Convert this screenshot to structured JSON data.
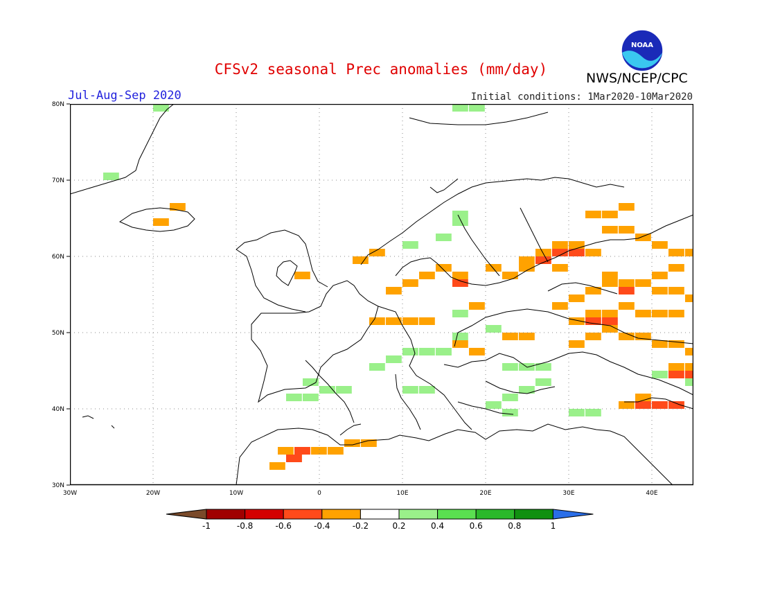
{
  "header": {
    "title": "CFSv2 seasonal Prec anomalies (mm/day)",
    "season": "Jul-Aug-Sep 2020",
    "initial_conditions": "Initial conditions: 1Mar2020-10Mar2020",
    "agency": "NWS/NCEP/CPC",
    "logo_text": "NOAA"
  },
  "axes": {
    "lat_labels": [
      "80N",
      "70N",
      "60N",
      "50N",
      "40N",
      "30N"
    ],
    "lon_labels": [
      "30W",
      "20W",
      "10W",
      "0",
      "10E",
      "20E",
      "30E",
      "40E"
    ],
    "lon_range": [
      -30,
      45
    ],
    "lat_range": [
      30,
      80
    ]
  },
  "colorbar": {
    "labels": [
      "-1",
      "-0.8",
      "-0.6",
      "-0.4",
      "-0.2",
      "0.2",
      "0.4",
      "0.6",
      "0.8",
      "1"
    ],
    "colors": [
      "#7a4a2a",
      "#a00000",
      "#d40000",
      "#ff4a1a",
      "#ffa200",
      "#ffffff",
      "#9af08a",
      "#5ae050",
      "#2ab82a",
      "#109010",
      "#2a6ee8"
    ]
  },
  "anomaly_cells": {
    "orange": [
      [
        -5,
        34
      ],
      [
        -3,
        34
      ],
      [
        -1,
        34
      ],
      [
        1,
        34
      ],
      [
        3,
        35
      ],
      [
        5,
        35
      ],
      [
        -6,
        32
      ],
      [
        -4,
        33
      ],
      [
        8,
        51
      ],
      [
        10,
        51
      ],
      [
        12,
        51
      ],
      [
        6,
        51
      ],
      [
        8,
        55
      ],
      [
        10,
        56
      ],
      [
        12,
        57
      ],
      [
        14,
        58
      ],
      [
        16,
        57
      ],
      [
        26,
        60
      ],
      [
        28,
        61
      ],
      [
        30,
        61
      ],
      [
        32,
        60
      ],
      [
        34,
        63
      ],
      [
        36,
        63
      ],
      [
        38,
        62
      ],
      [
        32,
        65
      ],
      [
        34,
        65
      ],
      [
        36,
        66
      ],
      [
        40,
        61
      ],
      [
        42,
        60
      ],
      [
        44,
        60
      ],
      [
        32,
        55
      ],
      [
        34,
        56
      ],
      [
        36,
        56
      ],
      [
        38,
        56
      ],
      [
        40,
        55
      ],
      [
        42,
        55
      ],
      [
        44,
        54
      ],
      [
        30,
        54
      ],
      [
        28,
        53
      ],
      [
        32,
        52
      ],
      [
        34,
        52
      ],
      [
        36,
        53
      ],
      [
        38,
        52
      ],
      [
        40,
        52
      ],
      [
        42,
        52
      ],
      [
        32,
        49
      ],
      [
        34,
        50
      ],
      [
        36,
        49
      ],
      [
        38,
        49
      ],
      [
        40,
        48
      ],
      [
        42,
        48
      ],
      [
        44,
        47
      ],
      [
        30,
        48
      ],
      [
        36,
        40
      ],
      [
        38,
        41
      ],
      [
        40,
        40
      ],
      [
        42,
        40
      ],
      [
        24,
        49
      ],
      [
        22,
        49
      ],
      [
        18,
        47
      ],
      [
        16,
        48
      ],
      [
        20,
        58
      ],
      [
        22,
        57
      ],
      [
        24,
        58
      ],
      [
        18,
        53
      ],
      [
        -3,
        57
      ],
      [
        -18,
        66
      ],
      [
        -20,
        64
      ],
      [
        44,
        45
      ],
      [
        42,
        45
      ],
      [
        6,
        60
      ],
      [
        4,
        59
      ],
      [
        34,
        57
      ],
      [
        40,
        57
      ],
      [
        28,
        58
      ],
      [
        24,
        59
      ],
      [
        30,
        51
      ],
      [
        42,
        58
      ]
    ],
    "red": [
      [
        32,
        51
      ],
      [
        34,
        51
      ],
      [
        36,
        55
      ],
      [
        38,
        40
      ],
      [
        40,
        40
      ],
      [
        42,
        40
      ],
      [
        44,
        44
      ],
      [
        42,
        44
      ],
      [
        -4,
        33
      ],
      [
        -3,
        34
      ],
      [
        16,
        56
      ],
      [
        28,
        60
      ],
      [
        30,
        60
      ],
      [
        26,
        59
      ]
    ],
    "green": [
      [
        -20,
        79
      ],
      [
        -26,
        70
      ],
      [
        16,
        79
      ],
      [
        18,
        79
      ],
      [
        16,
        65
      ],
      [
        16,
        64
      ],
      [
        14,
        62
      ],
      [
        10,
        61
      ],
      [
        8,
        46
      ],
      [
        10,
        47
      ],
      [
        12,
        47
      ],
      [
        14,
        47
      ],
      [
        6,
        45
      ],
      [
        -2,
        43
      ],
      [
        -4,
        41
      ],
      [
        -2,
        41
      ],
      [
        0,
        42
      ],
      [
        2,
        42
      ],
      [
        10,
        42
      ],
      [
        12,
        42
      ],
      [
        22,
        45
      ],
      [
        24,
        45
      ],
      [
        26,
        45
      ],
      [
        26,
        43
      ],
      [
        24,
        42
      ],
      [
        22,
        41
      ],
      [
        20,
        40
      ],
      [
        22,
        39
      ],
      [
        30,
        39
      ],
      [
        32,
        39
      ],
      [
        16,
        52
      ],
      [
        16,
        49
      ],
      [
        14,
        47
      ],
      [
        40,
        44
      ],
      [
        44,
        43
      ],
      [
        20,
        50
      ]
    ]
  }
}
